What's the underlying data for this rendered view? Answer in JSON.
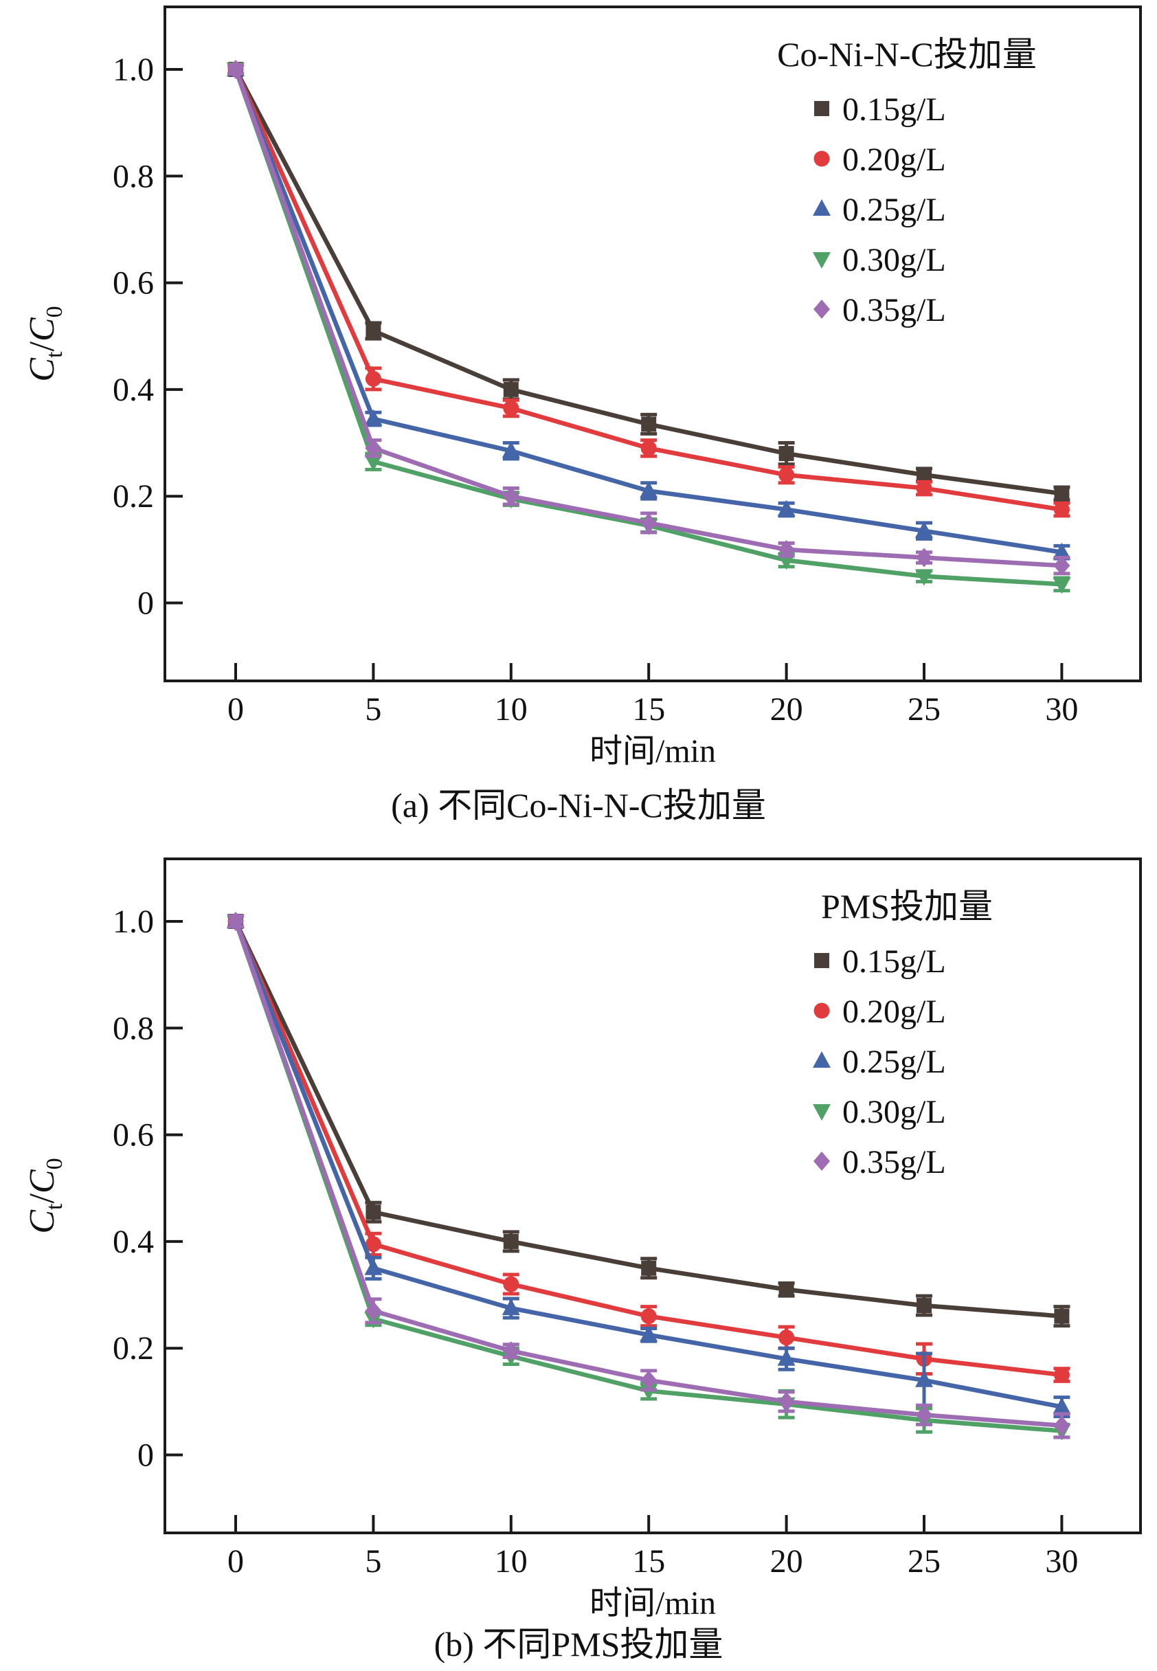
{
  "page": {
    "background": "#ffffff",
    "axis_color": "#1a1a1a",
    "text_color": "#111111"
  },
  "chart_data": [
    {
      "type": "line",
      "panel": "a",
      "legend_title": "Co-Ni-N-C投加量",
      "caption": "(a) 不同Co-Ni-N-C投加量",
      "xlabel": "时间/min",
      "ylabel": "Ct/C0",
      "ylabel_parts": [
        [
          "C",
          "italic"
        ],
        [
          "t",
          "sub"
        ],
        [
          "/",
          "plain"
        ],
        [
          "C",
          "italic"
        ],
        [
          "0",
          "sub"
        ]
      ],
      "x": [
        0,
        5,
        10,
        15,
        20,
        25,
        30
      ],
      "x_tick_labels": [
        "0",
        "5",
        "10",
        "15",
        "20",
        "25",
        "30"
      ],
      "y_tick_values": [
        1.0,
        0.8,
        0.6,
        0.4,
        0.2,
        0
      ],
      "y_tick_labels": [
        "1.0",
        "0.8",
        "0.6",
        "0.4",
        "0.2",
        "0"
      ],
      "xlim": [
        -2.6,
        32.8
      ],
      "ylim": [
        -0.147,
        1.117
      ],
      "grid": false,
      "legend_position": "top-right-inside",
      "series": [
        {
          "name": "0.15g/L",
          "marker": "square",
          "color": "#4a3e39",
          "values": [
            1.0,
            0.51,
            0.4,
            0.335,
            0.28,
            0.24,
            0.205
          ],
          "errors": [
            0.008,
            0.015,
            0.018,
            0.018,
            0.02,
            0.012,
            0.012
          ]
        },
        {
          "name": "0.20g/L",
          "marker": "circle",
          "color": "#e23b3e",
          "values": [
            1.0,
            0.42,
            0.365,
            0.29,
            0.24,
            0.215,
            0.175
          ],
          "errors": [
            0.008,
            0.02,
            0.015,
            0.015,
            0.015,
            0.012,
            0.012
          ]
        },
        {
          "name": "0.25g/L",
          "marker": "triangle-up",
          "color": "#4565a9",
          "values": [
            1.0,
            0.345,
            0.285,
            0.21,
            0.175,
            0.135,
            0.095
          ],
          "errors": [
            0.008,
            0.012,
            0.015,
            0.015,
            0.012,
            0.015,
            0.012
          ]
        },
        {
          "name": "0.30g/L",
          "marker": "triangle-down",
          "color": "#4fa165",
          "values": [
            1.0,
            0.265,
            0.195,
            0.145,
            0.08,
            0.05,
            0.035
          ],
          "errors": [
            0.008,
            0.015,
            0.012,
            0.012,
            0.012,
            0.01,
            0.012
          ]
        },
        {
          "name": "0.35g/L",
          "marker": "diamond",
          "color": "#9d6cb3",
          "values": [
            1.0,
            0.29,
            0.2,
            0.15,
            0.1,
            0.085,
            0.07
          ],
          "errors": [
            0.008,
            0.015,
            0.015,
            0.018,
            0.012,
            0.01,
            0.015
          ]
        }
      ]
    },
    {
      "type": "line",
      "panel": "b",
      "legend_title": "PMS投加量",
      "caption": "(b) 不同PMS投加量",
      "xlabel": "时间/min",
      "ylabel": "Ct/C0",
      "ylabel_parts": [
        [
          "C",
          "italic"
        ],
        [
          "t",
          "sub"
        ],
        [
          "/",
          "plain"
        ],
        [
          "C",
          "italic"
        ],
        [
          "0",
          "sub"
        ]
      ],
      "x": [
        0,
        5,
        10,
        15,
        20,
        25,
        30
      ],
      "x_tick_labels": [
        "0",
        "5",
        "10",
        "15",
        "20",
        "25",
        "30"
      ],
      "y_tick_values": [
        1.0,
        0.8,
        0.6,
        0.4,
        0.2,
        0
      ],
      "y_tick_labels": [
        "1.0",
        "0.8",
        "0.6",
        "0.4",
        "0.2",
        "0"
      ],
      "xlim": [
        -2.6,
        32.8
      ],
      "ylim": [
        -0.147,
        1.117
      ],
      "grid": false,
      "legend_position": "top-right-inside",
      "series": [
        {
          "name": "0.15g/L",
          "marker": "square",
          "color": "#4a3e39",
          "values": [
            1.0,
            0.455,
            0.4,
            0.35,
            0.31,
            0.28,
            0.26
          ],
          "errors": [
            0.01,
            0.018,
            0.018,
            0.018,
            0.012,
            0.018,
            0.018
          ]
        },
        {
          "name": "0.20g/L",
          "marker": "circle",
          "color": "#e23b3e",
          "values": [
            1.0,
            0.395,
            0.32,
            0.26,
            0.22,
            0.18,
            0.15
          ],
          "errors": [
            0.01,
            0.02,
            0.018,
            0.018,
            0.02,
            0.028,
            0.012
          ]
        },
        {
          "name": "0.25g/L",
          "marker": "triangle-up",
          "color": "#4565a9",
          "values": [
            1.0,
            0.35,
            0.275,
            0.225,
            0.18,
            0.14,
            0.09
          ],
          "errors": [
            0.01,
            0.02,
            0.018,
            0.012,
            0.02,
            0.05,
            0.018
          ]
        },
        {
          "name": "0.30g/L",
          "marker": "triangle-down",
          "color": "#4fa165",
          "values": [
            1.0,
            0.255,
            0.185,
            0.12,
            0.095,
            0.065,
            0.045
          ],
          "errors": [
            0.01,
            0.012,
            0.015,
            0.015,
            0.025,
            0.022,
            0.012
          ]
        },
        {
          "name": "0.35g/L",
          "marker": "diamond",
          "color": "#9d6cb3",
          "values": [
            1.0,
            0.27,
            0.195,
            0.14,
            0.1,
            0.075,
            0.055
          ],
          "errors": [
            0.01,
            0.022,
            0.012,
            0.018,
            0.018,
            0.018,
            0.022
          ]
        }
      ]
    }
  ]
}
